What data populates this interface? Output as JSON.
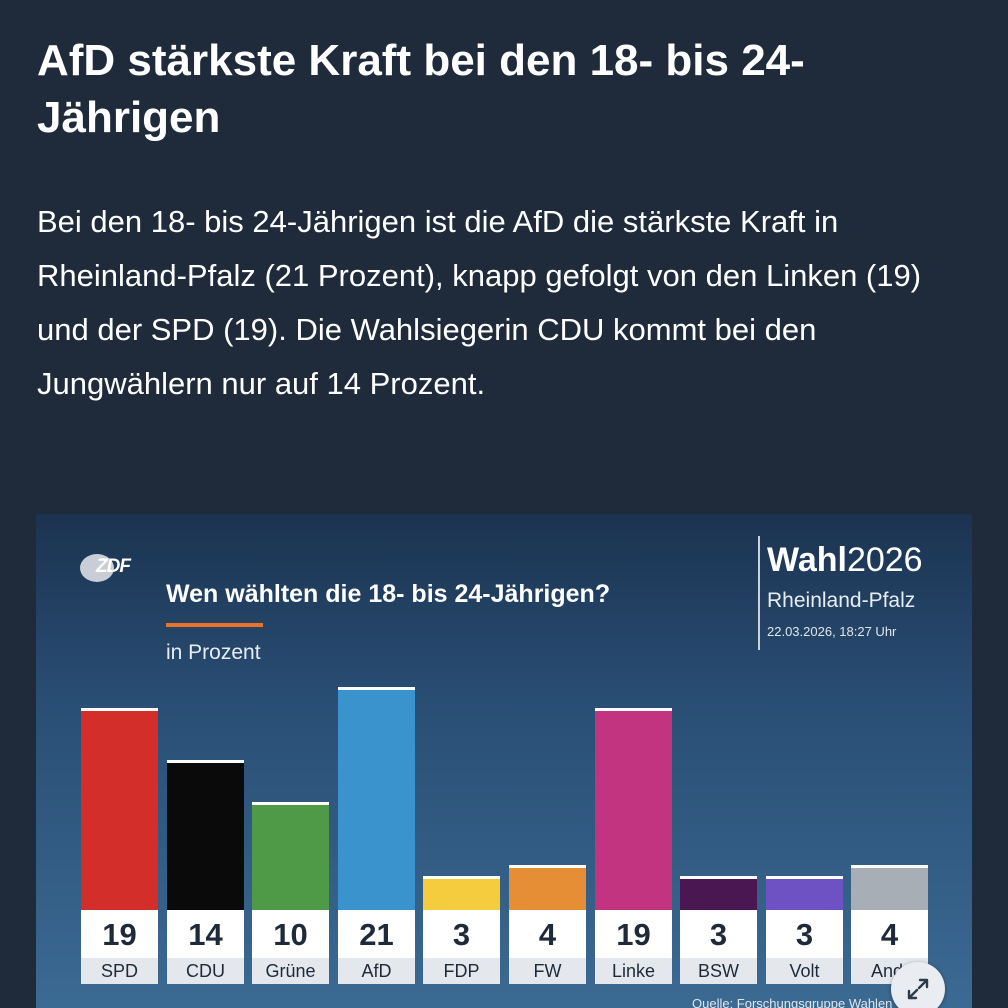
{
  "article": {
    "headline": "AfD stärkste Kraft bei den 18- bis 24-Jährigen",
    "lead": "Bei den 18- bis 24-Jährigen ist die AfD die stärkste Kraft in Rheinland-Pfalz (21 Prozent), knapp gefolgt von den Linken (19) und der SPD (19). Die Wahlsiegerin CDU kommt bei den Jungwählern nur auf 14 Prozent."
  },
  "graphic": {
    "logo": "ZDF",
    "title": "Wen wählten die 18- bis 24-Jährigen?",
    "subtitle": "in Prozent",
    "brand_bold": "Wahl",
    "brand_year": "2026",
    "region": "Rheinland-Pfalz",
    "timestamp": "22.03.2026, 18:27 Uhr",
    "source": "Quelle: Forschungsgruppe Wahlen",
    "expand_icon": "expand-icon"
  },
  "chart_data": {
    "type": "bar",
    "title": "Wen wählten die 18- bis 24-Jährigen?",
    "ylabel": "in Prozent",
    "categories": [
      "SPD",
      "CDU",
      "Grüne",
      "AfD",
      "FDP",
      "FW",
      "Linke",
      "BSW",
      "Volt",
      "And."
    ],
    "values": [
      19,
      14,
      10,
      21,
      3,
      4,
      19,
      3,
      3,
      4
    ],
    "colors": [
      "#d42e2a",
      "#0a0a0a",
      "#4f9a47",
      "#3b93cd",
      "#f4cc3d",
      "#e58e36",
      "#c23480",
      "#4a1752",
      "#6e52c4",
      "#a7aeb6"
    ],
    "ylim": [
      0,
      21
    ]
  }
}
